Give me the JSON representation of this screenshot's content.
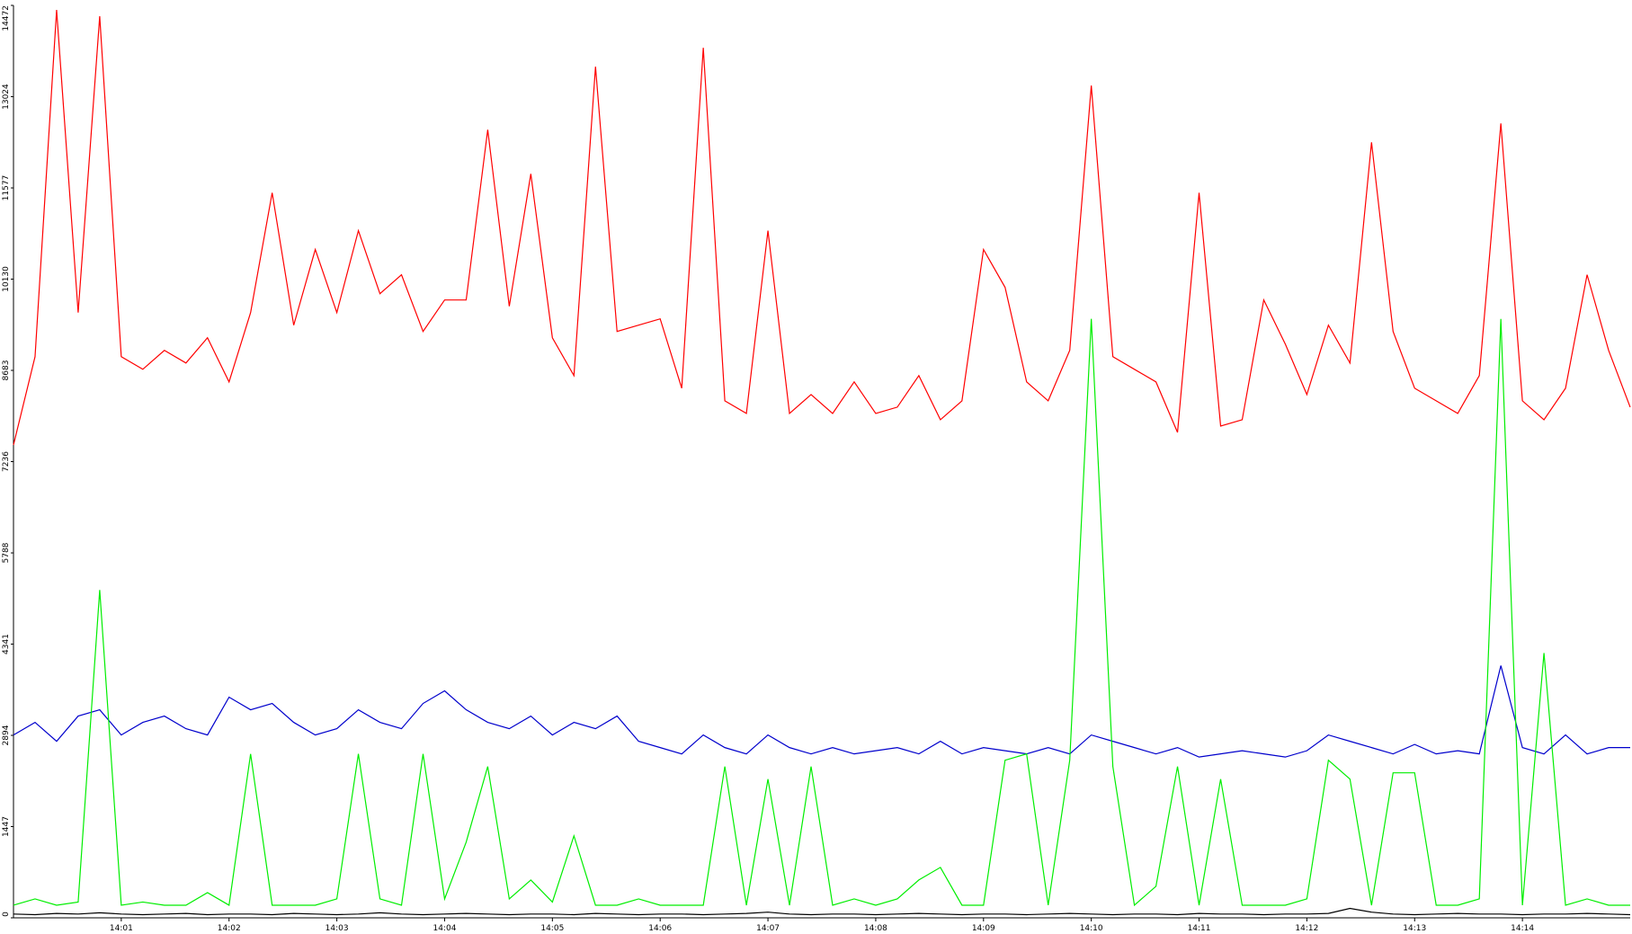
{
  "chart_data": {
    "type": "line",
    "x": [
      840.0,
      840.2,
      840.4,
      840.6,
      840.8,
      841.0,
      841.2,
      841.4,
      841.6,
      841.8,
      842.0,
      842.2,
      842.4,
      842.6,
      842.8,
      843.0,
      843.2,
      843.4,
      843.6,
      843.8,
      844.0,
      844.2,
      844.4,
      844.6,
      844.8,
      845.0,
      845.2,
      845.4,
      845.6,
      845.8,
      846.0,
      846.2,
      846.4,
      846.6,
      846.8,
      847.0,
      847.2,
      847.4,
      847.6,
      847.8,
      848.0,
      848.2,
      848.4,
      848.6,
      848.8,
      849.0,
      849.2,
      849.4,
      849.6,
      849.8,
      850.0,
      850.2,
      850.4,
      850.6,
      850.8,
      851.0,
      851.2,
      851.4,
      851.6,
      851.8,
      852.0,
      852.2,
      852.4,
      852.6,
      852.8,
      853.0,
      853.2,
      853.4,
      853.6,
      853.8,
      854.0,
      854.2,
      854.4,
      854.6,
      854.8,
      855.0
    ],
    "series": [
      {
        "color": "#ff0000",
        "values": [
          7500,
          8900,
          14400,
          9600,
          14300,
          8900,
          8700,
          9000,
          8800,
          9200,
          8500,
          9600,
          11500,
          9400,
          10600,
          9600,
          10900,
          9900,
          10200,
          9300,
          9800,
          9800,
          12500,
          9700,
          11800,
          9200,
          8600,
          13500,
          9300,
          9400,
          9500,
          8400,
          13800,
          8200,
          8000,
          10900,
          8000,
          8300,
          8000,
          8500,
          8000,
          8100,
          8600,
          7900,
          8200,
          10600,
          10000,
          8500,
          8200,
          9000,
          13200,
          8900,
          8700,
          8500,
          7700,
          11500,
          7800,
          7900,
          9800,
          9100,
          8300,
          9400,
          8800,
          12300,
          9300,
          8400,
          8200,
          8000,
          8600,
          12600,
          8200,
          7900,
          8400,
          10200,
          9000,
          8100
        ]
      },
      {
        "color": "#0000cc",
        "values": [
          2900,
          3100,
          2800,
          3200,
          3300,
          2900,
          3100,
          3200,
          3000,
          2900,
          3500,
          3300,
          3400,
          3100,
          2900,
          3000,
          3300,
          3100,
          3000,
          3400,
          3600,
          3300,
          3100,
          3000,
          3200,
          2900,
          3100,
          3000,
          3200,
          2800,
          2700,
          2600,
          2900,
          2700,
          2600,
          2900,
          2700,
          2600,
          2700,
          2600,
          2650,
          2700,
          2600,
          2800,
          2600,
          2700,
          2650,
          2600,
          2700,
          2600,
          2900,
          2800,
          2700,
          2600,
          2700,
          2550,
          2600,
          2650,
          2600,
          2550,
          2650,
          2900,
          2800,
          2700,
          2600,
          2750,
          2600,
          2650,
          2600,
          4000,
          2700,
          2600,
          2900,
          2600,
          2700,
          2700
        ]
      },
      {
        "color": "#00ee00",
        "values": [
          200,
          300,
          200,
          250,
          5200,
          200,
          250,
          200,
          200,
          400,
          200,
          2600,
          200,
          200,
          200,
          300,
          2600,
          300,
          200,
          2600,
          300,
          1200,
          2400,
          300,
          600,
          250,
          1300,
          200,
          200,
          300,
          200,
          200,
          200,
          2400,
          200,
          2200,
          200,
          2400,
          200,
          300,
          200,
          300,
          600,
          800,
          200,
          200,
          2500,
          2600,
          200,
          2500,
          9500,
          2400,
          200,
          500,
          2400,
          200,
          2200,
          200,
          200,
          200,
          300,
          2500,
          2200,
          200,
          2300,
          2300,
          200,
          200,
          300,
          9500,
          200,
          4200,
          200,
          300,
          200,
          200
        ]
      },
      {
        "color": "#000000",
        "values": [
          60,
          50,
          70,
          60,
          80,
          60,
          50,
          60,
          70,
          50,
          60,
          60,
          50,
          70,
          60,
          50,
          60,
          80,
          60,
          50,
          60,
          70,
          60,
          50,
          60,
          60,
          50,
          70,
          60,
          50,
          60,
          60,
          50,
          60,
          70,
          90,
          60,
          50,
          60,
          60,
          50,
          60,
          70,
          60,
          50,
          60,
          60,
          50,
          60,
          70,
          60,
          50,
          60,
          60,
          50,
          70,
          60,
          60,
          50,
          60,
          60,
          70,
          150,
          90,
          60,
          50,
          60,
          70,
          60,
          60,
          50,
          60,
          60,
          70,
          60,
          50
        ]
      }
    ],
    "xlim": [
      840.0,
      855.0
    ],
    "xticks": [
      {
        "value": 841,
        "label": "14:01"
      },
      {
        "value": 842,
        "label": "14:02"
      },
      {
        "value": 843,
        "label": "14:03"
      },
      {
        "value": 844,
        "label": "14:04"
      },
      {
        "value": 845,
        "label": "14:05"
      },
      {
        "value": 846,
        "label": "14:06"
      },
      {
        "value": 847,
        "label": "14:07"
      },
      {
        "value": 848,
        "label": "14:08"
      },
      {
        "value": 849,
        "label": "14:09"
      },
      {
        "value": 850,
        "label": "14:10"
      },
      {
        "value": 851,
        "label": "14:11"
      },
      {
        "value": 852,
        "label": "14:12"
      },
      {
        "value": 853,
        "label": "14:13"
      },
      {
        "value": 854,
        "label": "14:14"
      }
    ],
    "ylim": [
      0,
      14472
    ],
    "yticks": [
      0,
      1447,
      2894,
      4341,
      5788,
      7236,
      8683,
      10130,
      11577,
      13024,
      14472
    ]
  }
}
